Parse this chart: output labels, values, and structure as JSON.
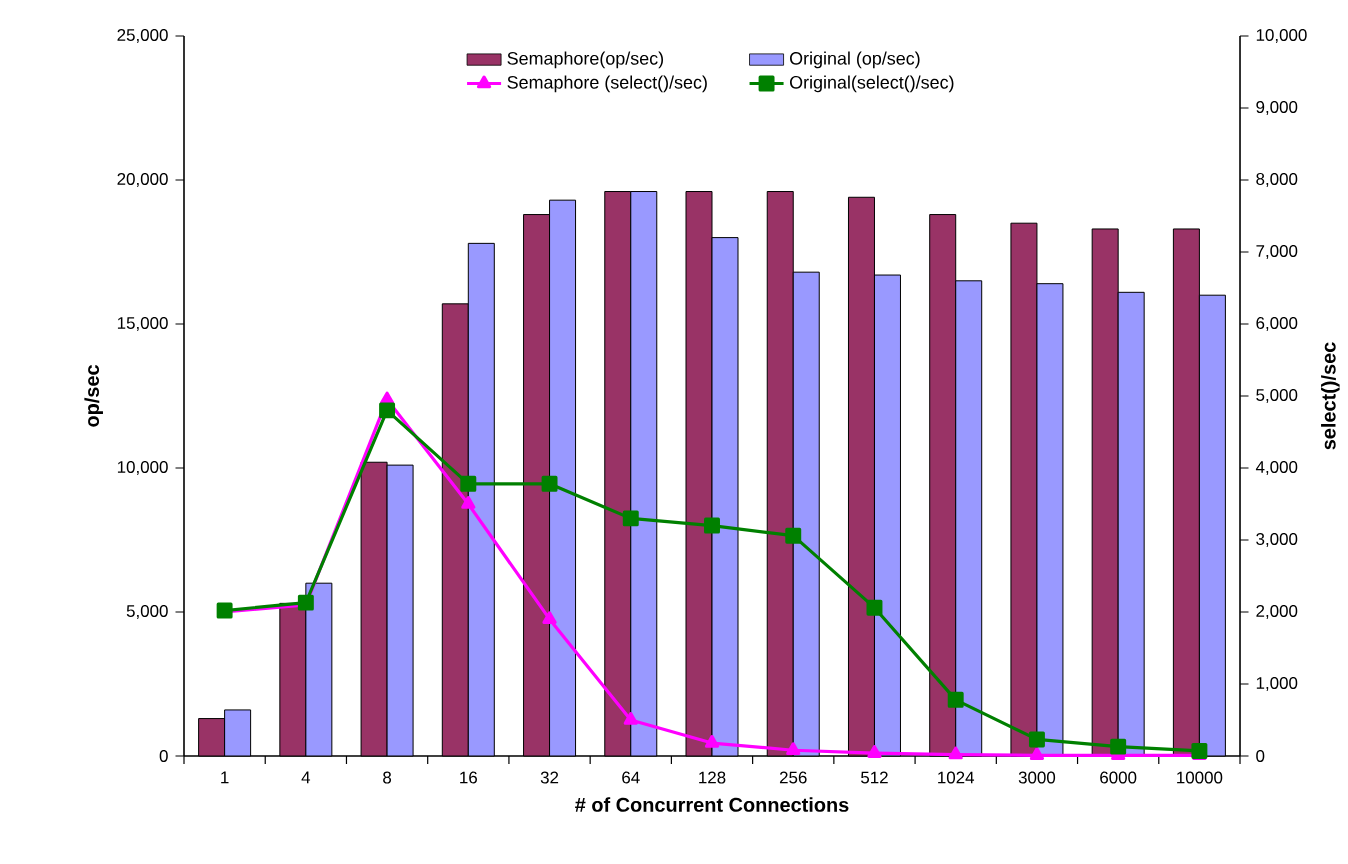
{
  "chart_data": {
    "type": "bar",
    "xlabel": "# of Concurrent Connections",
    "ylabel": "op/sec",
    "y2label": "select()/sec",
    "categories": [
      "1",
      "4",
      "8",
      "16",
      "32",
      "64",
      "128",
      "256",
      "512",
      "1024",
      "3000",
      "6000",
      "10000"
    ],
    "series": [
      {
        "name": "Semaphore(op/sec)",
        "color": "#993366",
        "values": [
          1300,
          5300,
          10200,
          15700,
          18800,
          19600,
          19600,
          19600,
          19400,
          18800,
          18500,
          18300,
          18300
        ]
      },
      {
        "name": "Original (op/sec)",
        "color": "#9999ff",
        "values": [
          1600,
          6000,
          10100,
          17800,
          19300,
          19600,
          18000,
          16800,
          16700,
          16500,
          16400,
          16100,
          16000
        ]
      },
      {
        "name": "Semaphore (select()/sec)",
        "type": "line",
        "axis": "y2",
        "marker": "triangle",
        "color": "#ff00ff",
        "values": [
          2000,
          2100,
          4950,
          3500,
          1900,
          500,
          180,
          80,
          40,
          20,
          10,
          10,
          10
        ]
      },
      {
        "name": "Original(select()/sec)",
        "type": "line",
        "axis": "y2",
        "marker": "square",
        "color": "#008000",
        "values": [
          2020,
          2130,
          4800,
          3780,
          3780,
          3300,
          3200,
          3060,
          2060,
          780,
          230,
          130,
          70
        ]
      }
    ],
    "ylim": [
      0,
      25000
    ],
    "yticks": [
      0,
      {
        "value": 5000,
        "label": "5,000"
      },
      {
        "value": 10000,
        "label": "10,000"
      },
      {
        "value": 15000,
        "label": "15,000"
      },
      {
        "value": 20000,
        "label": "20,000"
      },
      {
        "value": 25000,
        "label": "25,000"
      }
    ],
    "y2lim": [
      0,
      10000
    ],
    "y2ticks": [
      0,
      {
        "value": 1000,
        "label": "1,000"
      },
      {
        "value": 2000,
        "label": "2,000"
      },
      {
        "value": 3000,
        "label": "3,000"
      },
      {
        "value": 4000,
        "label": "4,000"
      },
      {
        "value": 5000,
        "label": "5,000"
      },
      {
        "value": 6000,
        "label": "6,000"
      },
      {
        "value": 7000,
        "label": "7,000"
      },
      {
        "value": 8000,
        "label": "8,000"
      },
      {
        "value": 9000,
        "label": "9,000"
      },
      {
        "value": 10000,
        "label": "10,000"
      }
    ],
    "legend": "top",
    "grid": false,
    "line_style": "solid"
  }
}
